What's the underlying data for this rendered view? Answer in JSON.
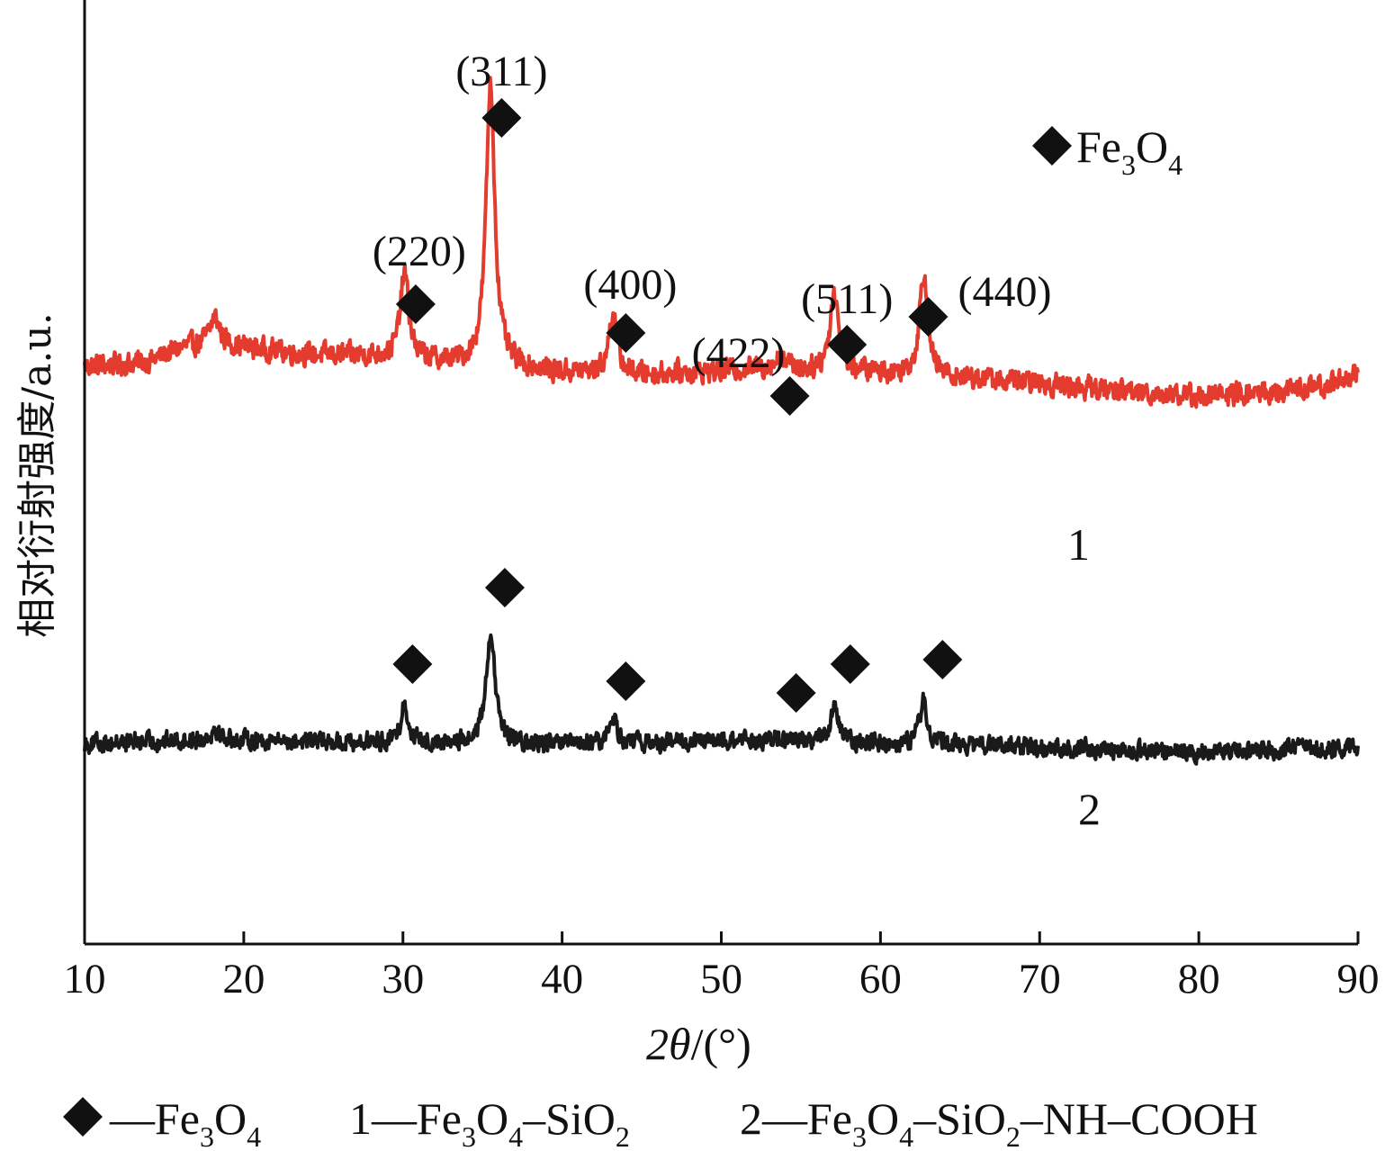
{
  "chart_data": {
    "type": "line",
    "xlabel": {
      "italic_part_1": "2",
      "symbol": "θ",
      "rest": "/(°)"
    },
    "ylabel": "相对衍射强度/a.u.",
    "xlim": [
      10,
      90
    ],
    "x_ticks": [
      10,
      20,
      30,
      40,
      50,
      60,
      70,
      80,
      90
    ],
    "grid": false,
    "y_ticks_shown": false,
    "marker_legend": {
      "symbol": "diamond",
      "label_main": "Fe",
      "sub1": "3",
      "label_mid": "O",
      "sub2": "4"
    },
    "series": [
      {
        "name": "1",
        "color": "#e33b2e",
        "baseline": 110,
        "noise": 11,
        "background": [
          [
            10,
            105
          ],
          [
            14,
            110
          ],
          [
            16,
            125
          ],
          [
            18,
            132
          ],
          [
            20,
            126
          ],
          [
            24,
            118
          ],
          [
            27,
            117
          ],
          [
            29,
            115
          ],
          [
            33,
            108
          ],
          [
            40,
            98
          ],
          [
            45,
            96
          ],
          [
            50,
            100
          ],
          [
            53,
            104
          ],
          [
            56,
            100
          ],
          [
            60,
            98
          ],
          [
            65,
            93
          ],
          [
            70,
            86
          ],
          [
            75,
            78
          ],
          [
            80,
            72
          ],
          [
            85,
            76
          ],
          [
            88,
            84
          ],
          [
            90,
            98
          ]
        ],
        "peaks": [
          {
            "x": 18.2,
            "height": 28,
            "width": 0.35
          },
          {
            "x": 30.1,
            "height": 95,
            "width": 0.32
          },
          {
            "x": 35.5,
            "height": 315,
            "width": 0.33
          },
          {
            "x": 43.2,
            "height": 70,
            "width": 0.3
          },
          {
            "x": 53.8,
            "height": 12,
            "width": 0.4
          },
          {
            "x": 57.1,
            "height": 88,
            "width": 0.33
          },
          {
            "x": 62.7,
            "height": 115,
            "width": 0.3
          }
        ],
        "label": "1"
      },
      {
        "name": "2",
        "color": "#1a1a1a",
        "baseline": 0,
        "noise": 9,
        "background": [
          [
            10,
            0
          ],
          [
            18,
            4
          ],
          [
            25,
            2
          ],
          [
            30,
            0
          ],
          [
            40,
            -2
          ],
          [
            50,
            2
          ],
          [
            55,
            4
          ],
          [
            60,
            0
          ],
          [
            70,
            -4
          ],
          [
            80,
            -10
          ],
          [
            90,
            -4
          ]
        ],
        "peaks": [
          {
            "x": 18.2,
            "height": 12,
            "width": 0.35
          },
          {
            "x": 30.1,
            "height": 42,
            "width": 0.3
          },
          {
            "x": 35.5,
            "height": 125,
            "width": 0.33
          },
          {
            "x": 43.2,
            "height": 30,
            "width": 0.3
          },
          {
            "x": 57.1,
            "height": 36,
            "width": 0.3
          },
          {
            "x": 62.7,
            "height": 48,
            "width": 0.3
          }
        ],
        "label": "2"
      }
    ],
    "annotations_series1": [
      {
        "hkl": "(220)",
        "x": 30.8
      },
      {
        "hkl": "(311)",
        "x": 36.2
      },
      {
        "hkl": "(400)",
        "x": 44.0
      },
      {
        "hkl": "(422)",
        "x": 54.3
      },
      {
        "hkl": "(511)",
        "x": 57.9
      },
      {
        "hkl": "(440)",
        "x": 63.0
      }
    ],
    "annotations_series2_x": [
      30.6,
      36.4,
      44.0,
      54.7,
      58.1,
      63.9
    ]
  },
  "caption": {
    "item0": {
      "symbol": "diamond",
      "dash": "—",
      "f1": "Fe",
      "s1": "3",
      "f2": "O",
      "s2": "4"
    },
    "item1": {
      "num": "1",
      "dash": "—",
      "f1": "Fe",
      "s1": "3",
      "f2": "O",
      "s2": "4",
      "f3": "–SiO",
      "s3": "2"
    },
    "item2": {
      "num": "2",
      "dash": "—",
      "f1": "Fe",
      "s1": "3",
      "f2": "O",
      "s2": "4",
      "f3": "–SiO",
      "s3": "2",
      "f4": "–NH–COOH"
    }
  }
}
